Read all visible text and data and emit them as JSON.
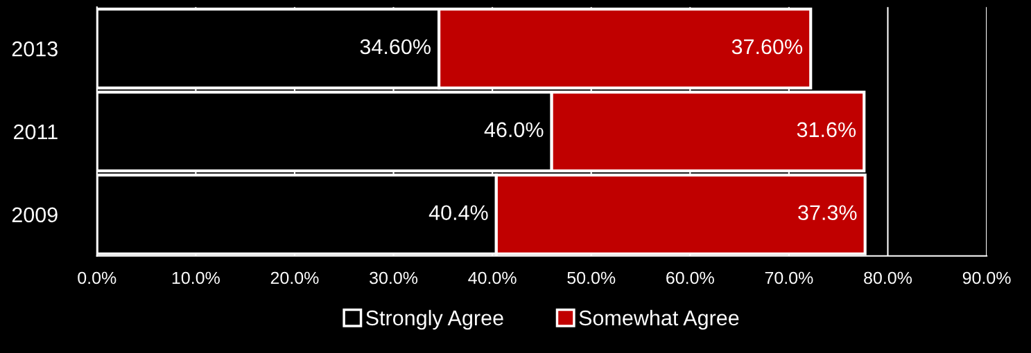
{
  "chart_data": {
    "type": "bar",
    "orientation": "horizontal",
    "stacked": true,
    "categories": [
      "2013",
      "2011",
      "2009"
    ],
    "series": [
      {
        "name": "Strongly Agree",
        "color": "#000000",
        "values": [
          34.6,
          46.0,
          40.4
        ],
        "value_labels": [
          "34.60%",
          "46.0%",
          "40.4%"
        ]
      },
      {
        "name": "Somewhat Agree",
        "color": "#c00000",
        "values": [
          37.6,
          31.6,
          37.3
        ],
        "value_labels": [
          "37.60%",
          "31.6%",
          "37.3%"
        ]
      }
    ],
    "xlim": [
      0,
      90
    ],
    "xticks": [
      {
        "value": 0,
        "label": "0.0%"
      },
      {
        "value": 10,
        "label": "10.0%"
      },
      {
        "value": 20,
        "label": "20.0%"
      },
      {
        "value": 30,
        "label": "30.0%"
      },
      {
        "value": 40,
        "label": "40.0%"
      },
      {
        "value": 50,
        "label": "50.0%"
      },
      {
        "value": 60,
        "label": "60.0%"
      },
      {
        "value": 70,
        "label": "70.0%"
      },
      {
        "value": 80,
        "label": "80.0%"
      },
      {
        "value": 90,
        "label": "90.0%"
      }
    ],
    "grid": "x",
    "legend": "bottom"
  }
}
